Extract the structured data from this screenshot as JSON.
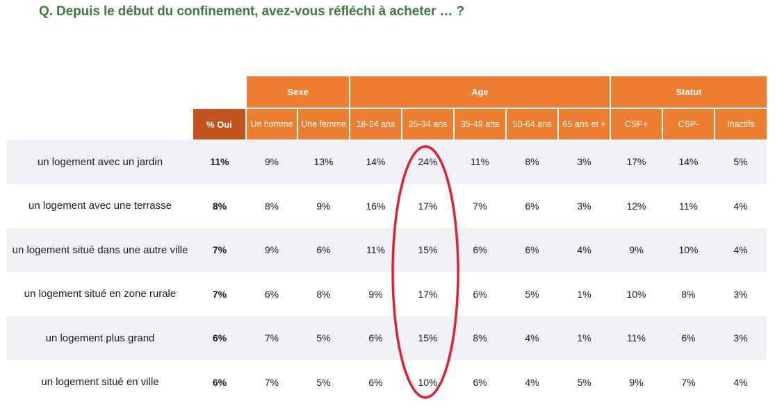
{
  "question": "Q. Depuis le début du confinement, avez-vous réfléchi à acheter … ?",
  "groups": {
    "sexe": "Sexe",
    "age": "Age",
    "statut": "Statut"
  },
  "columns": {
    "oui": "% Oui",
    "homme": "Un homme",
    "femme": "Une femme",
    "a18_24": "18-24 ans",
    "a25_34": "25-34 ans",
    "a35_49": "35-49 ans",
    "a50_64": "50-64 ans",
    "a65": "65 ans et +",
    "cspplus": "CSP+",
    "cspmoins": "CSP-",
    "inactifs": "Inactifs"
  },
  "rows": [
    {
      "label": "un logement avec un jardin",
      "oui": "11%",
      "homme": "9%",
      "femme": "13%",
      "a18_24": "14%",
      "a25_34": "24%",
      "a35_49": "11%",
      "a50_64": "8%",
      "a65": "3%",
      "cspplus": "17%",
      "cspmoins": "14%",
      "inactifs": "5%"
    },
    {
      "label": "un logement avec une terrasse",
      "oui": "8%",
      "homme": "8%",
      "femme": "9%",
      "a18_24": "16%",
      "a25_34": "17%",
      "a35_49": "7%",
      "a50_64": "6%",
      "a65": "3%",
      "cspplus": "12%",
      "cspmoins": "11%",
      "inactifs": "4%"
    },
    {
      "label": "un logement situé dans une autre ville",
      "oui": "7%",
      "homme": "9%",
      "femme": "6%",
      "a18_24": "11%",
      "a25_34": "15%",
      "a35_49": "6%",
      "a50_64": "6%",
      "a65": "4%",
      "cspplus": "9%",
      "cspmoins": "10%",
      "inactifs": "4%"
    },
    {
      "label": "un logement situé en zone rurale",
      "oui": "7%",
      "homme": "6%",
      "femme": "8%",
      "a18_24": "9%",
      "a25_34": "17%",
      "a35_49": "6%",
      "a50_64": "5%",
      "a65": "1%",
      "cspplus": "10%",
      "cspmoins": "8%",
      "inactifs": "3%"
    },
    {
      "label": "un logement plus grand",
      "oui": "6%",
      "homme": "7%",
      "femme": "5%",
      "a18_24": "6%",
      "a25_34": "15%",
      "a35_49": "8%",
      "a50_64": "4%",
      "a65": "1%",
      "cspplus": "11%",
      "cspmoins": "6%",
      "inactifs": "3%"
    },
    {
      "label": "un logement situé en ville",
      "oui": "6%",
      "homme": "7%",
      "femme": "5%",
      "a18_24": "6%",
      "a25_34": "10%",
      "a35_49": "6%",
      "a50_64": "4%",
      "a65": "5%",
      "cspplus": "9%",
      "cspmoins": "7%",
      "inactifs": "4%"
    }
  ],
  "colors": {
    "header": "#ed7d31",
    "header_total": "#c5551f",
    "band": "#eff1f6",
    "title": "#3f7a3f",
    "highlight": "#e0202e"
  }
}
